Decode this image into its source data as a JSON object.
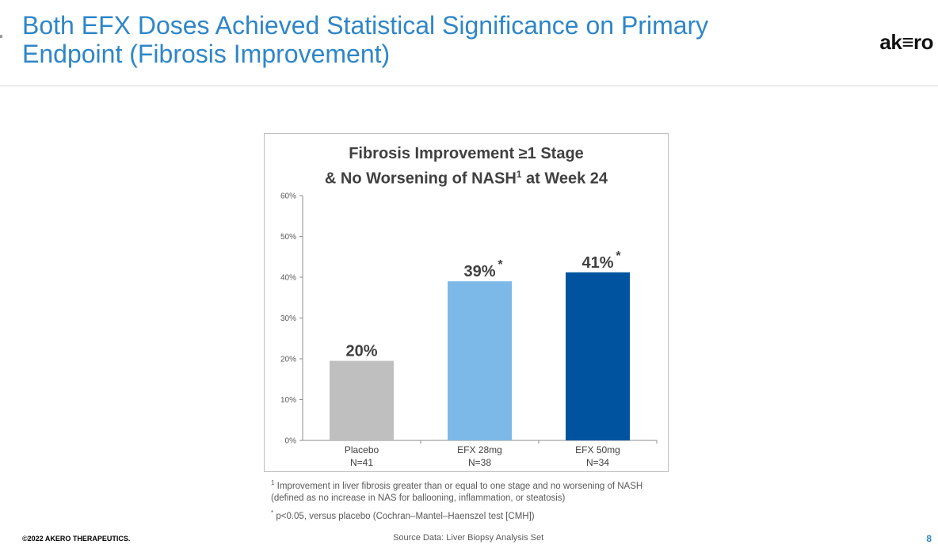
{
  "slide": {
    "title": "Both EFX Doses Achieved Statistical Significance on Primary Endpoint (Fibrosis Improvement)",
    "logo": {
      "pre": "ak",
      "mark": "≡",
      "post": "ro"
    },
    "footer_copyright": "©2022 AKERO THERAPEUTICS.",
    "footer_source": "Source Data: Liver Biopsy Analysis Set",
    "page_number": "8"
  },
  "chart_data": {
    "type": "bar",
    "title_line1": "Fibrosis Improvement ≥1 Stage",
    "title_line2_pre": "& No Worsening of NASH",
    "title_line2_sup": "1",
    "title_line2_post": " at Week 24",
    "categories": [
      "Placebo",
      "EFX 28mg",
      "EFX 50mg"
    ],
    "sublabels": [
      "N=41",
      "N=38",
      "N=34"
    ],
    "values": [
      19.5,
      39,
      41.2
    ],
    "data_labels": [
      "20%",
      "39%",
      "41%"
    ],
    "significance": [
      "",
      "*",
      "*"
    ],
    "colors": [
      "#BFBFBF",
      "#7DB9E8",
      "#00549F"
    ],
    "ylim": [
      0,
      60
    ],
    "yticks": [
      0,
      10,
      20,
      30,
      40,
      50,
      60
    ],
    "ytick_labels": [
      "0%",
      "10%",
      "20%",
      "30%",
      "40%",
      "50%",
      "60%"
    ],
    "xlabel": "",
    "ylabel": ""
  },
  "footnotes": {
    "fn1_mark": "1",
    "fn1_line1": "Improvement in liver fibrosis greater than or equal to one stage and no worsening of NASH",
    "fn1_line2": "(defined as no increase in NAS for ballooning, inflammation, or steatosis)",
    "fn2_mark": "*",
    "fn2_text": "p<0.05, versus placebo (Cochran–Mantel–Haenszel test [CMH])"
  }
}
